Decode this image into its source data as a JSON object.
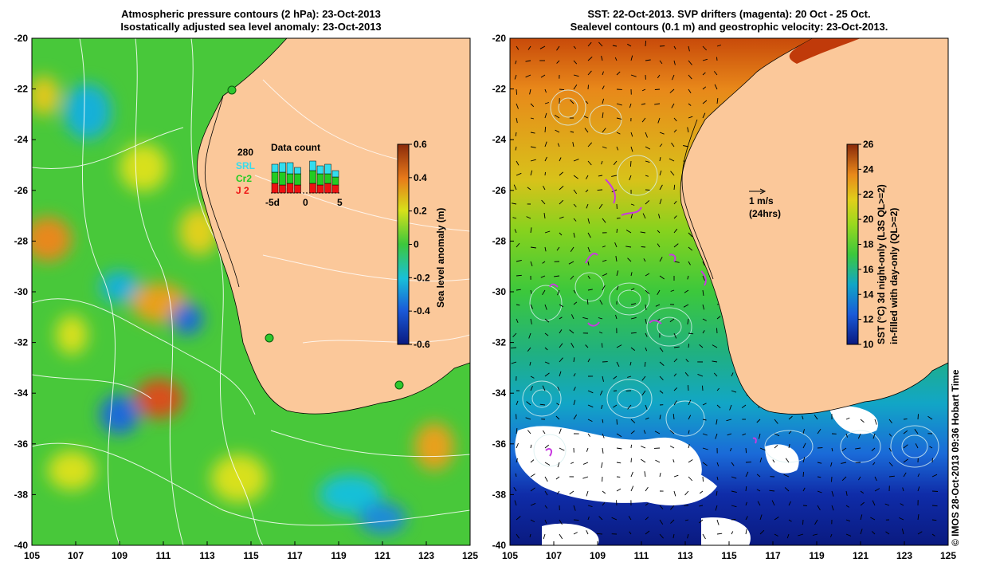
{
  "left_panel": {
    "title_line1": "Atmospheric pressure contours (2 hPa): 23-Oct-2013",
    "title_line2": "Isostatically adjusted sea level anomaly: 23-Oct-2013",
    "y_ticks": [
      "-20",
      "-22",
      "-24",
      "-26",
      "-28",
      "-30",
      "-32",
      "-34",
      "-36",
      "-38",
      "-40"
    ],
    "x_ticks": [
      "105",
      "107",
      "109",
      "111",
      "113",
      "115",
      "117",
      "119",
      "121",
      "123",
      "125"
    ],
    "colorbar_ticks": [
      "0.6",
      "0.4",
      "0.2",
      "0",
      "-0.2",
      "-0.4",
      "-0.6"
    ],
    "colorbar_label": "Sea level anomaly (m)",
    "inset": {
      "title": "Data count",
      "count": "280",
      "legend": [
        {
          "label": "SRL",
          "color": "#33ddee"
        },
        {
          "label": "Cr2",
          "color": "#22cc22"
        },
        {
          "label": "J 2",
          "color": "#ee1111"
        }
      ],
      "x_ticks": [
        "-5d",
        "0",
        "5"
      ]
    }
  },
  "right_panel": {
    "title_line1": "SST: 22-Oct-2013. SVP drifters (magenta): 20 Oct - 25 Oct.",
    "title_line2": "Sealevel contours (0.1 m) and geostrophic velocity: 23-Oct-2013.",
    "y_ticks": [
      "-20",
      "-22",
      "-24",
      "-26",
      "-28",
      "-30",
      "-32",
      "-34",
      "-36",
      "-38",
      "-40"
    ],
    "x_ticks": [
      "105",
      "107",
      "109",
      "111",
      "113",
      "115",
      "117",
      "119",
      "121",
      "123",
      "125"
    ],
    "colorbar_ticks": [
      "26",
      "24",
      "22",
      "20",
      "18",
      "16",
      "14",
      "12",
      "10"
    ],
    "colorbar_label_line1": "SST (°C) 3d night-only (L3S QL>=2)",
    "colorbar_label_line2": "in-filled with day-only (QL>=2)",
    "velocity_scale_label": "1 m/s",
    "velocity_scale_sub": "(24hrs)"
  },
  "credit": "© IMOS 28-Oct-2013 09:36 Hobart Time",
  "colors": {
    "land": "#fbc89a",
    "ocean_mid": "#3cc83c",
    "text": "#000000"
  }
}
